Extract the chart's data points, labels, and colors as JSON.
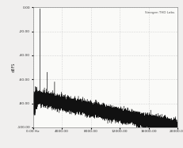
{
  "title": "",
  "ylabel": "dBFS",
  "xlabel": "",
  "xlim": [
    0,
    20000
  ],
  "ylim": [
    -100,
    0
  ],
  "yticks": [
    0,
    -20,
    -40,
    -60,
    -80,
    -100
  ],
  "xticks": [
    0,
    4000,
    8000,
    12000,
    16000,
    20000
  ],
  "xtick_labels": [
    "0.00 Hz",
    "4000.00",
    "8000.00",
    "12000.00",
    "16000.00",
    "20000.00"
  ],
  "ytick_labels": [
    "0.00",
    "-20.00",
    "-40.00",
    "-60.00",
    "-80.00",
    "-100.00"
  ],
  "annotation": "Sinegen THD Labs",
  "bg_color": "#f0efee",
  "plot_bg": "#fafaf8",
  "line_color": "#111111",
  "grid_color": "#cccccc",
  "noise_floor_start": -75,
  "noise_floor_end": -100,
  "spike_1k": -1,
  "spike_2k": -54,
  "spike_3k": -62,
  "spike_4k": -72,
  "spike_5k": -78
}
